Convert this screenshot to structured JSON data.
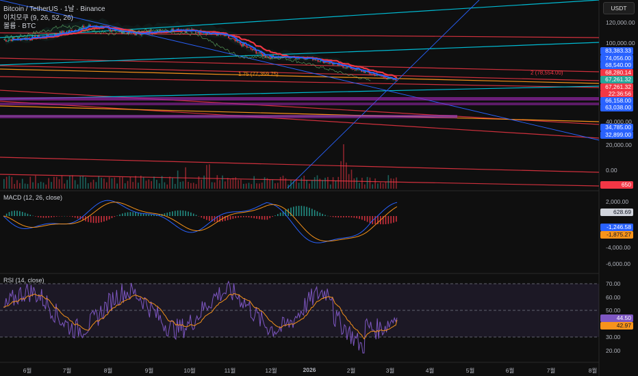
{
  "header": {
    "title": "Bitcoin / TetherUS · 1날 · Binance",
    "ichimoku": "이치모쿠 (9, 26, 52, 26)",
    "volume": "볼륨 · BTC"
  },
  "currency_button": "USDT",
  "panels": {
    "macd_title": "MACD (12, 26, close)",
    "rsi_title": "RSI (14, close)"
  },
  "price_axis_ticks": [
    "120,000.00",
    "100,000.00",
    "80,000.00",
    "40,000.00",
    "20,000.00",
    "0.00"
  ],
  "price_labels": [
    {
      "text": "83,383.33",
      "bg": "#2962ff",
      "fg": "#ffffff"
    },
    {
      "text": "74,056.00",
      "bg": "#2962ff",
      "fg": "#ffffff"
    },
    {
      "text": "68,540.00",
      "bg": "#2962ff",
      "fg": "#ffffff"
    },
    {
      "text": "68,280.14",
      "bg": "#f23645",
      "fg": "#ffffff"
    },
    {
      "text": "67,261.32",
      "bg": "#26a69a",
      "fg": "#ffffff"
    },
    {
      "text": "67,261.32",
      "bg": "#f23645",
      "fg": "#ffffff"
    },
    {
      "text": "22:36:56",
      "bg": "#f23645",
      "fg": "#ffffff"
    },
    {
      "text": "66,158.00",
      "bg": "#2962ff",
      "fg": "#ffffff"
    },
    {
      "text": "63,038.00",
      "bg": "#2962ff",
      "fg": "#ffffff"
    },
    {
      "text": "34,785.00",
      "bg": "#2962ff",
      "fg": "#ffffff"
    },
    {
      "text": "32,899.00",
      "bg": "#2962ff",
      "fg": "#ffffff"
    },
    {
      "text": "650",
      "bg": "#f23645",
      "fg": "#ffffff"
    }
  ],
  "fib_annotations": {
    "fib_175": "1.75 (77,359.75)",
    "fib_2": "2 (78,554.00)"
  },
  "macd_axis_ticks": [
    "2,000.00",
    "-4,000.00",
    "-6,000.00"
  ],
  "macd_labels": [
    {
      "text": "628.69",
      "bg": "#d1d4dc",
      "fg": "#131722"
    },
    {
      "text": "-1,246.58",
      "bg": "#2962ff",
      "fg": "#ffffff"
    },
    {
      "text": "-1,875.27",
      "bg": "#f7931a",
      "fg": "#131722"
    }
  ],
  "rsi_axis_ticks": [
    "70.00",
    "60.00",
    "50.00",
    "30.00",
    "20.00"
  ],
  "rsi_labels": [
    {
      "text": "44.50",
      "bg": "#7e57c2",
      "fg": "#ffffff"
    },
    {
      "text": "42.97",
      "bg": "#f7931a",
      "fg": "#131722"
    }
  ],
  "time_axis": [
    "6월",
    "7월",
    "8월",
    "9월",
    "10월",
    "11월",
    "12월",
    "2026",
    "2월",
    "3월",
    "4월",
    "5월",
    "6월",
    "7월",
    "8월"
  ],
  "chart_data": {
    "type": "line",
    "title": "Bitcoin / TetherUS · 1날 · Binance",
    "x": [
      "6월",
      "7월",
      "8월",
      "9월",
      "10월",
      "11월",
      "12월",
      "2026",
      "2월",
      "3월"
    ],
    "series": [
      {
        "name": "close",
        "values": [
          104000,
          107500,
          117000,
          110000,
          114000,
          109000,
          89000,
          88000,
          78000,
          67261.32
        ]
      }
    ],
    "ylim": [
      20000,
      135000
    ],
    "last_price": 67261.32,
    "macd": {
      "value": 628.69,
      "macd_line": -1246.58,
      "signal_line": -1875.27
    },
    "rsi": {
      "value": 44.5,
      "ma": 42.97
    },
    "grid": false,
    "colors": {
      "candle_up": "#26a69a",
      "candle_down": "#f23645",
      "ichimoku_base": "#f23645",
      "ichimoku_conv": "#2962ff",
      "fib": "#f7931a",
      "trend": "#00bcd4"
    }
  }
}
